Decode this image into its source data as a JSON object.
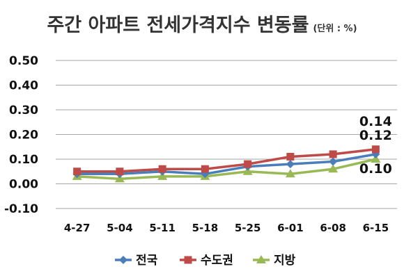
{
  "chart_data": {
    "type": "line",
    "title": "주간 아파트 전세가격지수 변동률",
    "unit_note": "(단위 : %)",
    "categories": [
      "4-27",
      "5-04",
      "5-11",
      "5-18",
      "5-25",
      "6-01",
      "6-08",
      "6-15"
    ],
    "ylim": [
      -0.1,
      0.5
    ],
    "yticks": [
      "0.50",
      "0.40",
      "0.30",
      "0.20",
      "0.10",
      "0.00",
      "-0.10"
    ],
    "grid": true,
    "legend": "bottom",
    "series": [
      {
        "name": "전국",
        "color": "#4a7ebb",
        "marker": "diamond",
        "values": [
          0.04,
          0.04,
          0.05,
          0.04,
          0.07,
          0.08,
          0.09,
          0.12
        ]
      },
      {
        "name": "수도권",
        "color": "#be4b48",
        "marker": "square",
        "values": [
          0.05,
          0.05,
          0.06,
          0.06,
          0.08,
          0.11,
          0.12,
          0.14
        ]
      },
      {
        "name": "지방",
        "color": "#98b954",
        "marker": "triangle",
        "values": [
          0.03,
          0.02,
          0.03,
          0.03,
          0.05,
          0.04,
          0.06,
          0.1
        ]
      }
    ],
    "data_labels": [
      {
        "series": "수도권",
        "category": "6-15",
        "text": "0.14"
      },
      {
        "series": "전국",
        "category": "6-15",
        "text": "0.12"
      },
      {
        "series": "지방",
        "category": "6-15",
        "text": "0.10"
      }
    ]
  }
}
